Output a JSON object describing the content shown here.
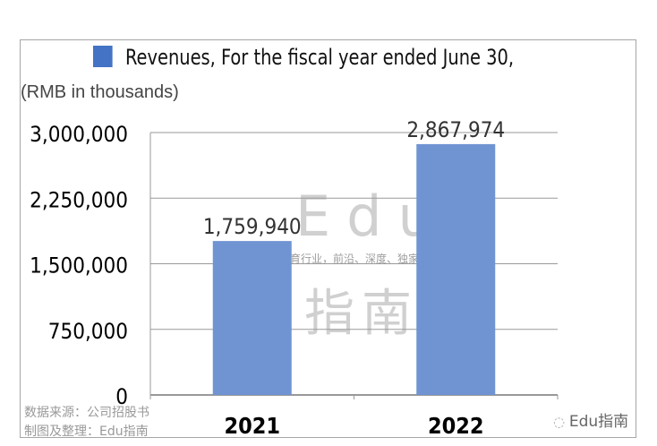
{
  "chart_data": {
    "type": "bar",
    "categories": [
      "2021",
      "2022"
    ],
    "series": [
      {
        "name": "Revenues,  For the fiscal year ended June 30,",
        "values": [
          1759940,
          2867974
        ]
      }
    ],
    "data_labels": [
      "1,759,940",
      "2,867,974"
    ],
    "ylabel": "(RMB in thousands)",
    "ylim": [
      0,
      3000000
    ],
    "yticks": [
      0,
      750000,
      1500000,
      2250000,
      3000000
    ],
    "ytick_labels": [
      "0",
      "750,000",
      "1,500,000",
      "2,250,000",
      "3,000,000"
    ],
    "grid": true,
    "legend": "top",
    "bar_color": "#7094d2",
    "legend_color": "#4472c4"
  },
  "source": {
    "line1": "数据来源：公司招股书",
    "line2": "制图及整理：Edu指南"
  },
  "brand": "Edu指南",
  "watermark": {
    "title": "Edu",
    "tagline": "教育行业，前沿、深度、独家",
    "sub": "指南"
  }
}
